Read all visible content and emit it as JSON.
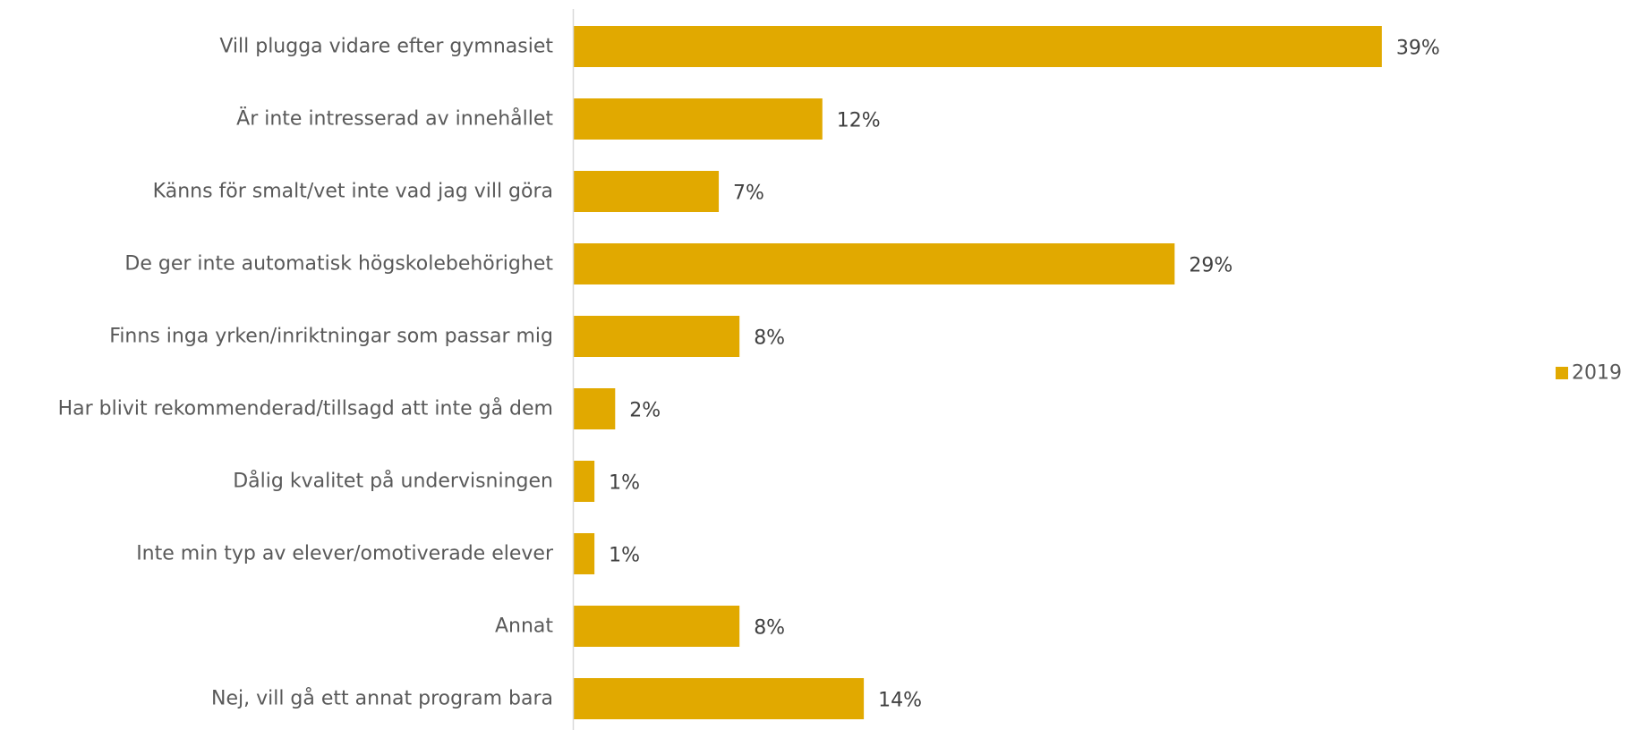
{
  "chart_data": {
    "type": "bar",
    "orientation": "horizontal",
    "categories": [
      "Vill plugga vidare efter gymnasiet",
      "Är inte intresserad av innehållet",
      "Känns för smalt/vet inte vad jag vill göra",
      "De ger inte automatisk högskolebehörighet",
      "Finns inga yrken/inriktningar som passar mig",
      "Har blivit rekommenderad/tillsagd att inte gå dem",
      "Dålig kvalitet på undervisningen",
      "Inte min typ av elever/omotiverade elever",
      "Annat",
      "Nej, vill gå ett annat program bara"
    ],
    "series": [
      {
        "name": "2019",
        "values": [
          39,
          12,
          7,
          29,
          8,
          2,
          1,
          1,
          8,
          14
        ],
        "labels": [
          "39%",
          "12%",
          "7%",
          "29%",
          "8%",
          "2%",
          "1%",
          "1%",
          "8%",
          "14%"
        ],
        "color": "#E1A900"
      }
    ],
    "xlim": [
      0,
      45
    ],
    "grid": false,
    "legend": "right"
  }
}
